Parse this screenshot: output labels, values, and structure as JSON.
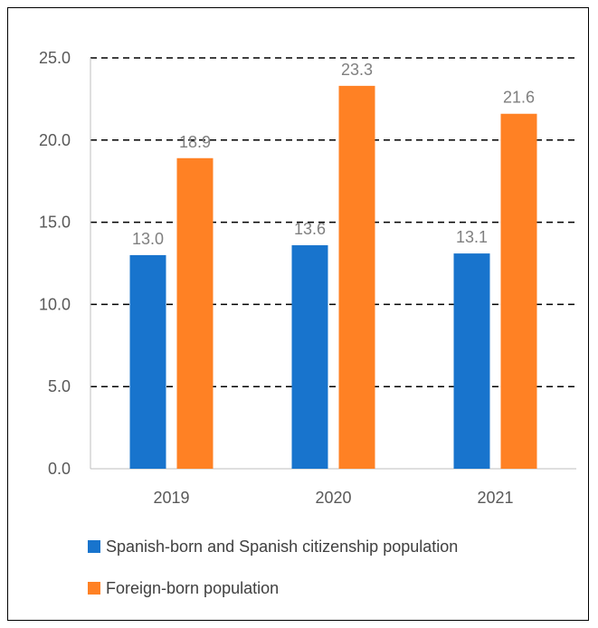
{
  "chart_data": {
    "type": "bar",
    "categories": [
      "2019",
      "2020",
      "2021"
    ],
    "series": [
      {
        "name": "Spanish-born and Spanish citizenship population",
        "values": [
          13.0,
          13.6,
          13.1
        ],
        "color": "#1874cd"
      },
      {
        "name": "Foreign-born population",
        "values": [
          18.9,
          23.3,
          21.6
        ],
        "color": "#ff8124"
      }
    ],
    "title": "",
    "xlabel": "",
    "ylabel": "",
    "ylim": [
      0,
      25
    ],
    "yticks": [
      "0.0",
      "5.0",
      "10.0",
      "15.0",
      "20.0",
      "25.0"
    ],
    "grid": true,
    "grid_style": "dashed",
    "legend_position": "bottom",
    "data_labels": true
  }
}
